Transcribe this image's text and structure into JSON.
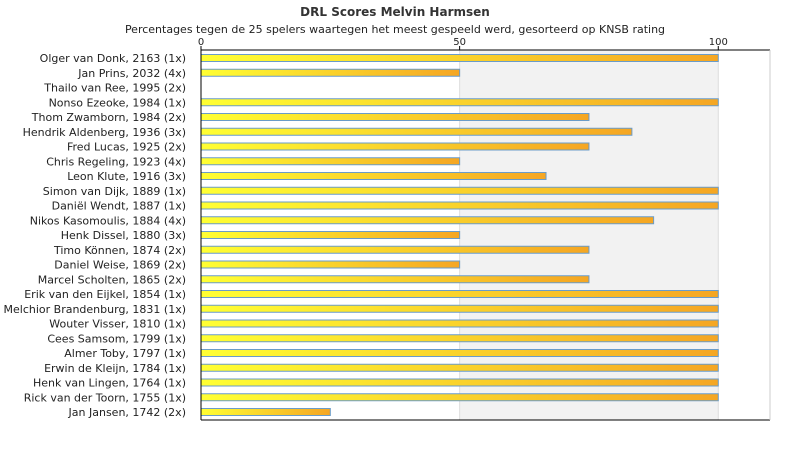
{
  "chart_data": {
    "type": "bar",
    "orientation": "horizontal",
    "title": "DRL Scores Melvin Harmsen",
    "subtitle": "Percentages tegen de 25 spelers waartegen het meest gespeeld werd, gesorteerd op KNSB rating",
    "xlim": [
      0,
      110
    ],
    "xticks": [
      "0",
      "50",
      "100"
    ],
    "grid": "alternating-bands",
    "categories": [
      "Olger van Donk, 2163 (1x)",
      "Jan Prins, 2032 (4x)",
      "Thailo van Ree, 1995 (2x)",
      "Nonso Ezeoke, 1984 (1x)",
      "Thom Zwamborn, 1984 (2x)",
      "Hendrik Aldenberg, 1936 (3x)",
      "Fred Lucas, 1925 (2x)",
      "Chris Regeling, 1923 (4x)",
      "Leon Klute, 1916 (3x)",
      "Simon van Dijk, 1889 (1x)",
      "Daniël Wendt, 1887 (1x)",
      "Nikos Kasomoulis, 1884 (4x)",
      "Henk Dissel, 1880 (3x)",
      "Timo Können, 1874 (2x)",
      "Daniel Weise, 1869 (2x)",
      "Marcel Scholten, 1865 (2x)",
      "Erik van den Eijkel, 1854 (1x)",
      "Melchior Brandenburg, 1831 (1x)",
      "Wouter Visser, 1810 (1x)",
      "Cees Samsom, 1799 (1x)",
      "Almer Toby, 1797 (1x)",
      "Erwin de Kleijn, 1784 (1x)",
      "Henk van Lingen, 1764 (1x)",
      "Rick van der Toorn, 1755 (1x)",
      "Jan Jansen, 1742 (2x)"
    ],
    "values": [
      100,
      50,
      0,
      100,
      75,
      83.3,
      75,
      50,
      66.7,
      100,
      100,
      87.5,
      50,
      75,
      50,
      75,
      100,
      100,
      100,
      100,
      100,
      100,
      100,
      100,
      25
    ],
    "colors": {
      "bar_left": "#ffff33",
      "bar_right": "#f5a623",
      "bar_edge": "#6a9cc9",
      "band": "#f2f2f2",
      "gridline": "#dddddd",
      "axis": "#000000"
    }
  }
}
